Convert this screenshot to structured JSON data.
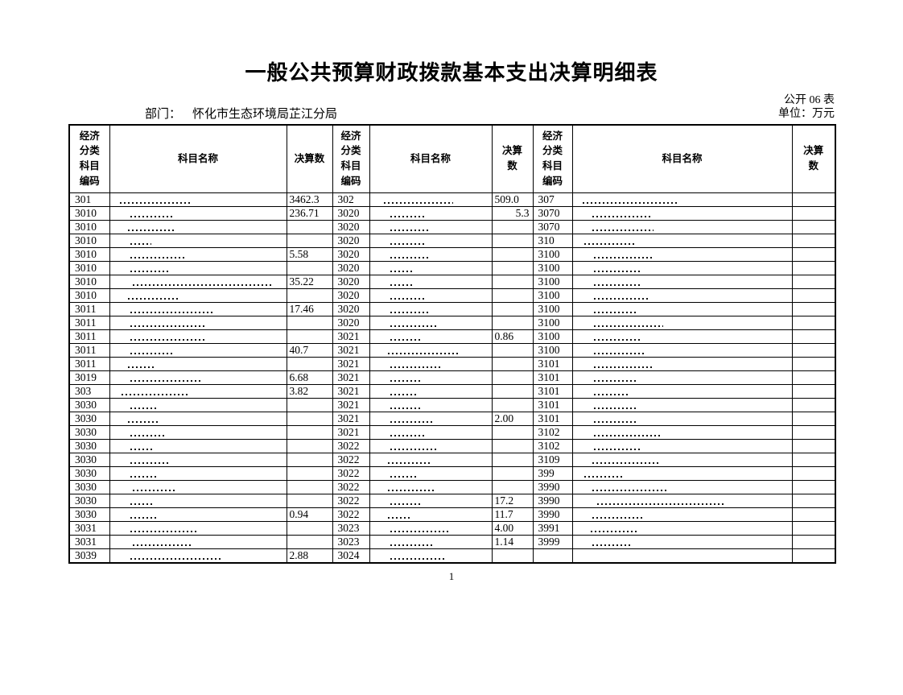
{
  "page": {
    "title": "一般公共预算财政拨款基本支出决算明细表",
    "department_label": "部门：",
    "department_value": "怀化市生态环境局芷江分局",
    "table_no": "公开 06 表",
    "unit": "单位：万元",
    "page_number": "1"
  },
  "table": {
    "header": {
      "code": "经济分类科目编码",
      "name": "科目名称",
      "value_one_line": "决算数",
      "value_two_line": "决算 数"
    },
    "note": "科目名称 cells contain illegible smudged text in the source scan; represented as dash marks [width,indent]. Row cell format: [code, value, markWidth, markIndent, align].",
    "rows": [
      [
        [
          "301",
          "3462.3",
          90,
          12
        ],
        [
          "302",
          "509.0",
          86,
          17
        ],
        [
          "307",
          "",
          120,
          12
        ]
      ],
      [
        [
          "3010",
          "236.71",
          55,
          25
        ],
        [
          "3020",
          "5.3",
          45,
          25,
          "r"
        ],
        [
          "3070",
          "",
          75,
          24
        ]
      ],
      [
        [
          "3010",
          "",
          58,
          22
        ],
        [
          "3020",
          "",
          48,
          25
        ],
        [
          "3070",
          "",
          76,
          24
        ]
      ],
      [
        [
          "3010",
          "",
          26,
          25
        ],
        [
          "3020",
          "",
          45,
          25
        ],
        [
          "310",
          "",
          64,
          14
        ]
      ],
      [
        [
          "3010",
          "5.58",
          68,
          25
        ],
        [
          "3020",
          "",
          48,
          25
        ],
        [
          "3100",
          "",
          74,
          26
        ]
      ],
      [
        [
          "3010",
          "",
          50,
          25
        ],
        [
          "3020",
          "",
          30,
          25
        ],
        [
          "3100",
          "",
          58,
          26
        ]
      ],
      [
        [
          "3010",
          "35.22",
          175,
          28
        ],
        [
          "3020",
          "",
          30,
          25
        ],
        [
          "3100",
          "",
          58,
          26
        ]
      ],
      [
        [
          "3010",
          "",
          62,
          22
        ],
        [
          "3020",
          "",
          42,
          25
        ],
        [
          "3100",
          "",
          70,
          26
        ]
      ],
      [
        [
          "3011",
          "17.46",
          105,
          25
        ],
        [
          "3020",
          "",
          48,
          25
        ],
        [
          "3100",
          "",
          52,
          26
        ]
      ],
      [
        [
          "3011",
          "",
          95,
          25
        ],
        [
          "3020",
          "",
          60,
          25
        ],
        [
          "3100",
          "",
          86,
          26
        ]
      ],
      [
        [
          "3011",
          "",
          92,
          25
        ],
        [
          "3021",
          "0.86",
          40,
          25
        ],
        [
          "3100",
          "",
          58,
          26
        ]
      ],
      [
        [
          "3011",
          "40.7",
          52,
          25
        ],
        [
          "3021",
          "",
          88,
          22
        ],
        [
          "3100",
          "",
          62,
          26
        ]
      ],
      [
        [
          "3011",
          "",
          32,
          22
        ],
        [
          "3021",
          "",
          65,
          25
        ],
        [
          "3101",
          "",
          72,
          26
        ]
      ],
      [
        [
          "3019",
          "6.68",
          88,
          25
        ],
        [
          "3021",
          "",
          38,
          25
        ],
        [
          "3101",
          "",
          52,
          26
        ]
      ],
      [
        [
          "303",
          "3.82",
          85,
          14
        ],
        [
          "3021",
          "",
          34,
          25
        ],
        [
          "3101",
          "",
          45,
          26
        ]
      ],
      [
        [
          "3030",
          "",
          32,
          25
        ],
        [
          "3021",
          "",
          40,
          25
        ],
        [
          "3101",
          "",
          52,
          26
        ]
      ],
      [
        [
          "3030",
          "",
          40,
          22
        ],
        [
          "3021",
          "2.00",
          52,
          25
        ],
        [
          "3101",
          "",
          52,
          26
        ]
      ],
      [
        [
          "3030",
          "",
          42,
          25
        ],
        [
          "3021",
          "",
          45,
          25
        ],
        [
          "3102",
          "",
          85,
          26
        ]
      ],
      [
        [
          "3030",
          "",
          28,
          25
        ],
        [
          "3022",
          "",
          58,
          25
        ],
        [
          "3102",
          "",
          60,
          26
        ]
      ],
      [
        [
          "3030",
          "",
          48,
          25
        ],
        [
          "3022",
          "",
          52,
          22
        ],
        [
          "3109",
          "",
          85,
          24
        ]
      ],
      [
        [
          "3030",
          "",
          32,
          25
        ],
        [
          "3022",
          "",
          32,
          25
        ],
        [
          "399",
          "",
          50,
          14
        ]
      ],
      [
        [
          "3030",
          "",
          52,
          28
        ],
        [
          "3022",
          "",
          58,
          22
        ],
        [
          "3990",
          "",
          92,
          24
        ]
      ],
      [
        [
          "3030",
          "",
          28,
          25
        ],
        [
          "3022",
          "17.2",
          40,
          25
        ],
        [
          "3990",
          "",
          158,
          30
        ]
      ],
      [
        [
          "3030",
          "0.94",
          32,
          25
        ],
        [
          "3022",
          "11.7",
          30,
          22
        ],
        [
          "3990",
          "",
          65,
          24
        ]
      ],
      [
        [
          "3031",
          "",
          82,
          25
        ],
        [
          "3023",
          "4.00",
          75,
          25
        ],
        [
          "3991",
          "",
          60,
          22
        ]
      ],
      [
        [
          "3031",
          "",
          72,
          28
        ],
        [
          "3023",
          "1.14",
          55,
          25
        ],
        [
          "3999",
          "",
          50,
          24
        ]
      ],
      [
        [
          "3039",
          "2.88",
          115,
          25
        ],
        [
          "3024",
          "",
          68,
          25
        ],
        [
          "",
          "",
          0,
          0
        ]
      ]
    ]
  }
}
